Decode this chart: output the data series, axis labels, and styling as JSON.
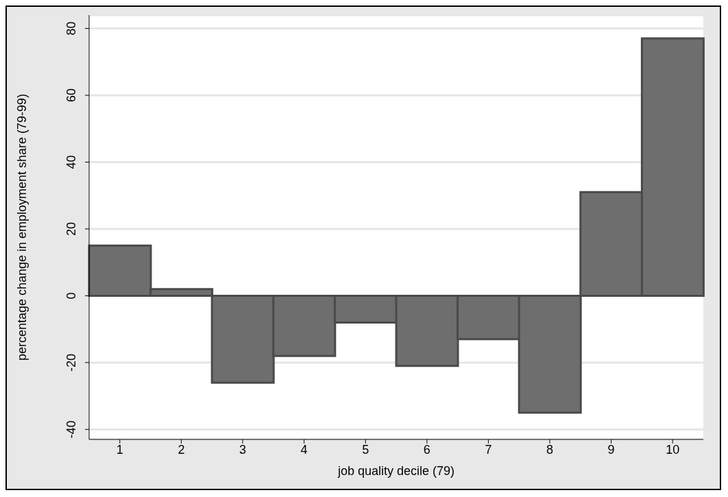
{
  "chart_data": {
    "type": "bar",
    "xlabel": "job quality decile (79)",
    "ylabel": "percentage change in employment share (79-99)",
    "categories": [
      "1",
      "2",
      "3",
      "4",
      "5",
      "6",
      "7",
      "8",
      "9",
      "10"
    ],
    "values": [
      15,
      2,
      -26,
      -18,
      -8,
      -21,
      -13,
      -35,
      31,
      77
    ],
    "color": "#6e6e6e",
    "ylim": [
      -43,
      84
    ],
    "yticks": [
      -40,
      -20,
      0,
      20,
      40,
      60,
      80
    ],
    "grid": "y"
  }
}
